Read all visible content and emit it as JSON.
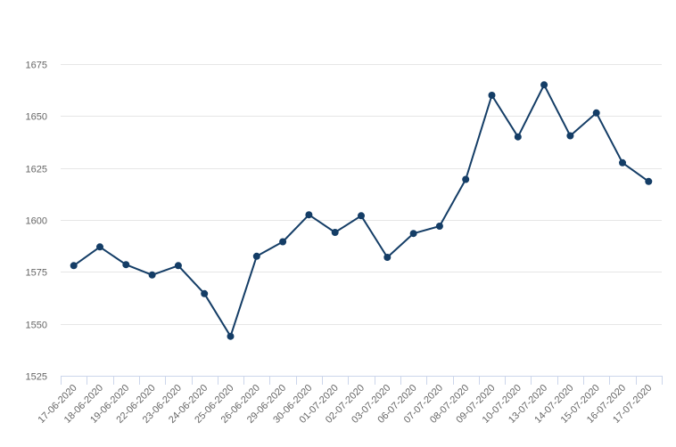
{
  "chart_data": {
    "type": "line",
    "title": "",
    "xlabel": "",
    "ylabel": "",
    "categories": [
      "17-06-2020",
      "18-06-2020",
      "19-06-2020",
      "22-06-2020",
      "23-06-2020",
      "24-06-2020",
      "25-06-2020",
      "26-06-2020",
      "29-06-2020",
      "30-06-2020",
      "01-07-2020",
      "02-07-2020",
      "03-07-2020",
      "06-07-2020",
      "07-07-2020",
      "08-07-2020",
      "09-07-2020",
      "10-07-2020",
      "13-07-2020",
      "14-07-2020",
      "15-07-2020",
      "16-07-2020",
      "17-07-2020"
    ],
    "series": [
      {
        "values": [
          1578,
          1587,
          1578.5,
          1573.5,
          1578,
          1564.5,
          1544,
          1582.5,
          1589.5,
          1602.5,
          1594,
          1602,
          1582,
          1593.5,
          1597,
          1619.5,
          1660,
          1640,
          1665,
          1640.5,
          1651.5,
          1627.5,
          1618.5
        ],
        "color": "#143d66"
      }
    ],
    "ylim": [
      1525,
      1675
    ],
    "yticks": [
      1525,
      1550,
      1575,
      1600,
      1625,
      1650,
      1675
    ],
    "grid": true,
    "legend": "none"
  }
}
